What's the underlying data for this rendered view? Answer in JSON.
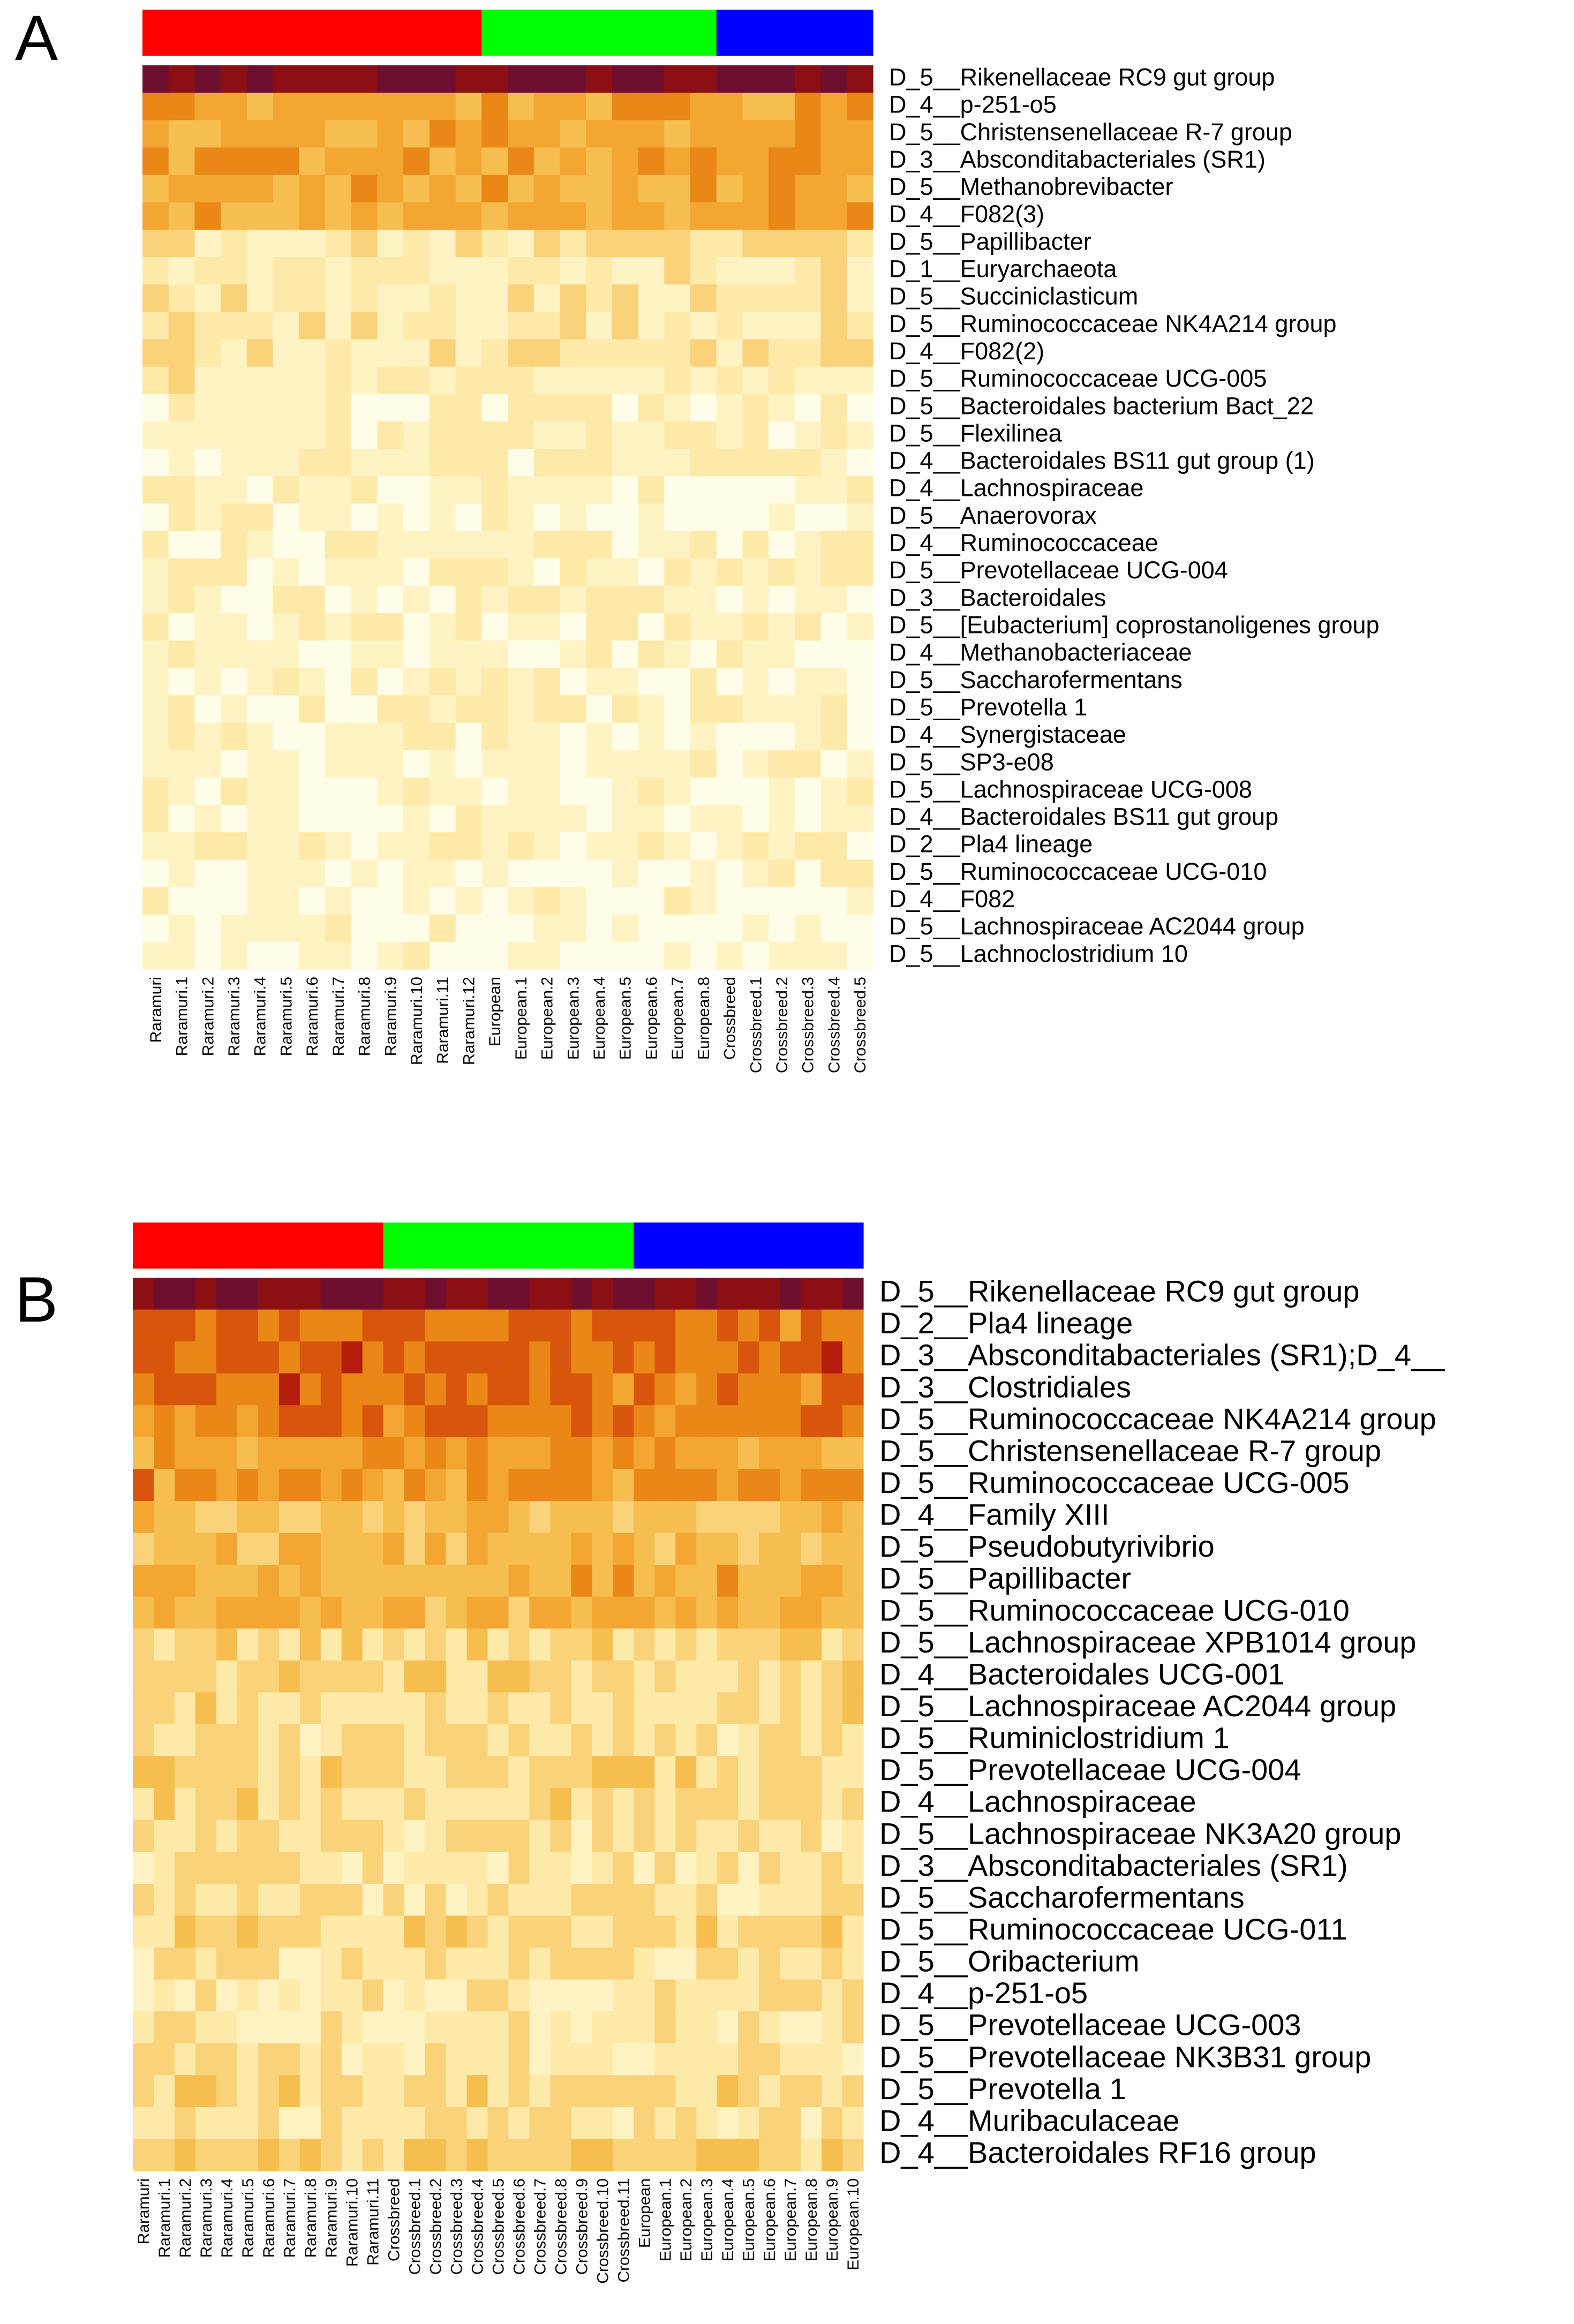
{
  "chart_data": [
    {
      "type": "heatmap",
      "panel_label": "A",
      "colormap": [
        "#fffde7",
        "#fff3c4",
        "#fde9a8",
        "#f9d27a",
        "#f6bd4f",
        "#f3a632",
        "#e98717",
        "#d8560b",
        "#b41c0c",
        "#8c0f14",
        "#6f0f2f"
      ],
      "groups": [
        {
          "name": "Raramuri",
          "color": "#ff0000",
          "count": 13
        },
        {
          "name": "European",
          "color": "#00ff00",
          "count": 9
        },
        {
          "name": "Crossbreed",
          "color": "#0000ff",
          "count": 6
        }
      ],
      "columns": [
        "Raramuri",
        "Raramuri.1",
        "Raramuri.2",
        "Raramuri.3",
        "Raramuri.4",
        "Raramuri.5",
        "Raramuri.6",
        "Raramuri.7",
        "Raramuri.8",
        "Raramuri.9",
        "Raramuri.10",
        "Raramuri.11",
        "Raramuri.12",
        "European",
        "European.1",
        "European.2",
        "European.3",
        "European.4",
        "European.5",
        "European.6",
        "European.7",
        "European.8",
        "Crossbreed",
        "Crossbreed.1",
        "Crossbreed.2",
        "Crossbreed.3",
        "Crossbreed.4",
        "Crossbreed.5"
      ],
      "rows": [
        "D_5__Rikenellaceae RC9 gut group",
        "D_4__p-251-o5",
        "D_5__Christensenellaceae R-7 group",
        "D_3__Absconditabacteriales (SR1)",
        "D_5__Methanobrevibacter",
        "D_4__F082(3)",
        "D_5__Papillibacter",
        "D_1__Euryarchaeota",
        "D_5__Succiniclasticum",
        "D_5__Ruminococcaceae NK4A214 group",
        "D_4__F082(2)",
        "D_5__Ruminococcaceae UCG-005",
        "D_5__Bacteroidales bacterium Bact_22",
        "D_5__Flexilinea",
        "D_4__Bacteroidales BS11 gut group (1)",
        "D_4__Lachnospiraceae",
        "D_5__Anaerovorax",
        "D_4__Ruminococcaceae",
        "D_5__Prevotellaceae UCG-004",
        "D_3__Bacteroidales",
        "D_5__[Eubacterium] coprostanoligenes group",
        "D_4__Methanobacteriaceae",
        "D_5__Saccharofermentans",
        "D_5__Prevotella 1",
        "D_4__Synergistaceae",
        "D_5__SP3-e08",
        "D_5__Lachnospiraceae UCG-008",
        "D_4__Bacteroidales BS11 gut group",
        "D_2__Pla4 lineage",
        "D_5__Ruminococcaceae UCG-010",
        "D_4__F082",
        "D_5__Lachnospiraceae AC2044 group",
        "D_5__Lachnoclostridium 10"
      ],
      "row_levels": [
        9.5,
        5,
        5,
        5.2,
        4.5,
        4.6,
        2,
        1.6,
        1.8,
        1.8,
        2.2,
        1.5,
        1.1,
        1.1,
        1.1,
        1.0,
        0.9,
        0.9,
        1.0,
        0.9,
        1.0,
        0.8,
        0.8,
        1.0,
        0.7,
        0.9,
        0.7,
        0.6,
        1.2,
        0.6,
        0.5,
        0.5,
        0.5
      ],
      "values": [],
      "value_scale": "relative abundance (scaled)"
    },
    {
      "type": "heatmap",
      "panel_label": "B",
      "colormap": [
        "#fffde7",
        "#fff3c4",
        "#fde9a8",
        "#f9d27a",
        "#f6bd4f",
        "#f3a632",
        "#e98717",
        "#d8560b",
        "#b41c0c",
        "#8c0f14",
        "#6f0f2f"
      ],
      "groups": [
        {
          "name": "Raramuri",
          "color": "#ff0000",
          "count": 12
        },
        {
          "name": "Crossbreed",
          "color": "#00ff00",
          "count": 12
        },
        {
          "name": "European",
          "color": "#0000ff",
          "count": 11
        }
      ],
      "columns": [
        "Raramuri",
        "Raramuri.1",
        "Raramuri.2",
        "Raramuri.3",
        "Raramuri.4",
        "Raramuri.5",
        "Raramuri.6",
        "Raramuri.7",
        "Raramuri.8",
        "Raramuri.9",
        "Raramuri.10",
        "Raramuri.11",
        "Crossbreed",
        "Crossbreed.1",
        "Crossbreed.2",
        "Crossbreed.3",
        "Crossbreed.4",
        "Crossbreed.5",
        "Crossbreed.6",
        "Crossbreed.7",
        "Crossbreed.8",
        "Crossbreed.9",
        "Crossbreed.10",
        "Crossbreed.11",
        "European",
        "European.1",
        "European.2",
        "European.3",
        "European.4",
        "European.5",
        "European.6",
        "European.7",
        "European.8",
        "European.9",
        "European.10"
      ],
      "rows": [
        "D_5__Rikenellaceae RC9 gut group",
        "D_2__Pla4 lineage",
        "D_3__Absconditabacteriales (SR1);D_4__",
        "D_3__Clostridiales",
        "D_5__Ruminococcaceae NK4A214 group",
        "D_5__Christensenellaceae R-7 group",
        "D_5__Ruminococcaceae UCG-005",
        "D_4__Family XIII",
        "D_5__Pseudobutyrivibrio",
        "D_5__Papillibacter",
        "D_5__Ruminococcaceae UCG-010",
        "D_5__Lachnospiraceae XPB1014 group",
        "D_4__Bacteroidales UCG-001",
        "D_5__Lachnospiraceae AC2044 group",
        "D_5__Ruminiclostridium 1",
        "D_5__Prevotellaceae UCG-004",
        "D_4__Lachnospiraceae",
        "D_5__Lachnospiraceae NK3A20 group",
        "D_3__Absconditabacteriales (SR1)",
        "D_5__Saccharofermentans",
        "D_5__Ruminococcaceae UCG-011",
        "D_5__Oribacterium",
        "D_4__p-251-o5",
        "D_5__Prevotellaceae UCG-003",
        "D_5__Prevotellaceae NK3B31 group",
        "D_5__Prevotella 1",
        "D_4__Muribaculaceae",
        "D_4__Bacteroidales RF16 group"
      ],
      "row_levels": [
        9.4,
        6.5,
        6.8,
        6.4,
        6.0,
        5.2,
        5.4,
        3.6,
        3.8,
        4.6,
        4.3,
        2.8,
        2.8,
        2.5,
        2.3,
        2.8,
        2.6,
        2.3,
        2.1,
        2.4,
        2.7,
        2.1,
        2.0,
        1.9,
        1.9,
        2.7,
        2.2,
        3.2
      ],
      "values": [],
      "value_scale": "relative abundance (scaled)"
    }
  ]
}
